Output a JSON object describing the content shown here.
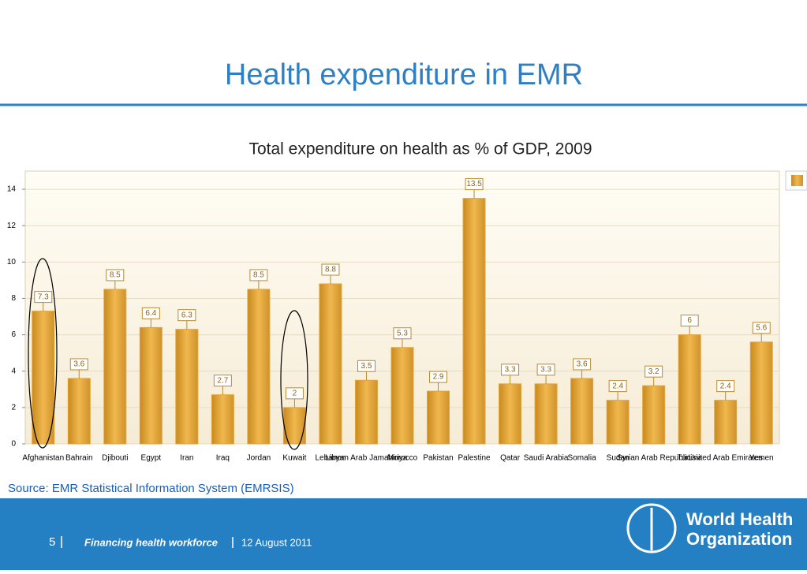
{
  "slide": {
    "title": "Health expenditure in EMR",
    "source": "Source: EMR Statistical Information System (EMRSIS)",
    "page": "5",
    "footer_title": "Financing health workforce",
    "footer_date": "12 August 2011",
    "logo_line1": "World Health",
    "logo_line2": "Organization"
  },
  "chart_data": {
    "type": "bar",
    "title": "Total expenditure on health as % of GDP, 2009",
    "categories": [
      "Afghanistan",
      "Bahrain",
      "Djibouti",
      "Egypt",
      "Iran",
      "Iraq",
      "Jordan",
      "Kuwait",
      "Lebanon",
      "Libyan Arab Jamahiriya",
      "Morocco",
      "Pakistan",
      "Palestine",
      "Qatar",
      "Saudi Arabia",
      "Somalia",
      "Sudan",
      "Syrian Arab Republic",
      "Tunisia",
      "United Arab Emirates",
      "Yemen"
    ],
    "values": [
      7.3,
      3.6,
      8.5,
      6.4,
      6.3,
      2.7,
      8.5,
      2,
      8.8,
      3.5,
      5.3,
      2.9,
      13.5,
      3.3,
      3.3,
      3.6,
      2.4,
      3.2,
      6,
      2.4,
      5.6
    ],
    "color": "#e3a53a",
    "ylim": [
      0,
      15
    ],
    "yticks": [
      0,
      2,
      4,
      6,
      8,
      10,
      12,
      14
    ],
    "grid": true
  }
}
